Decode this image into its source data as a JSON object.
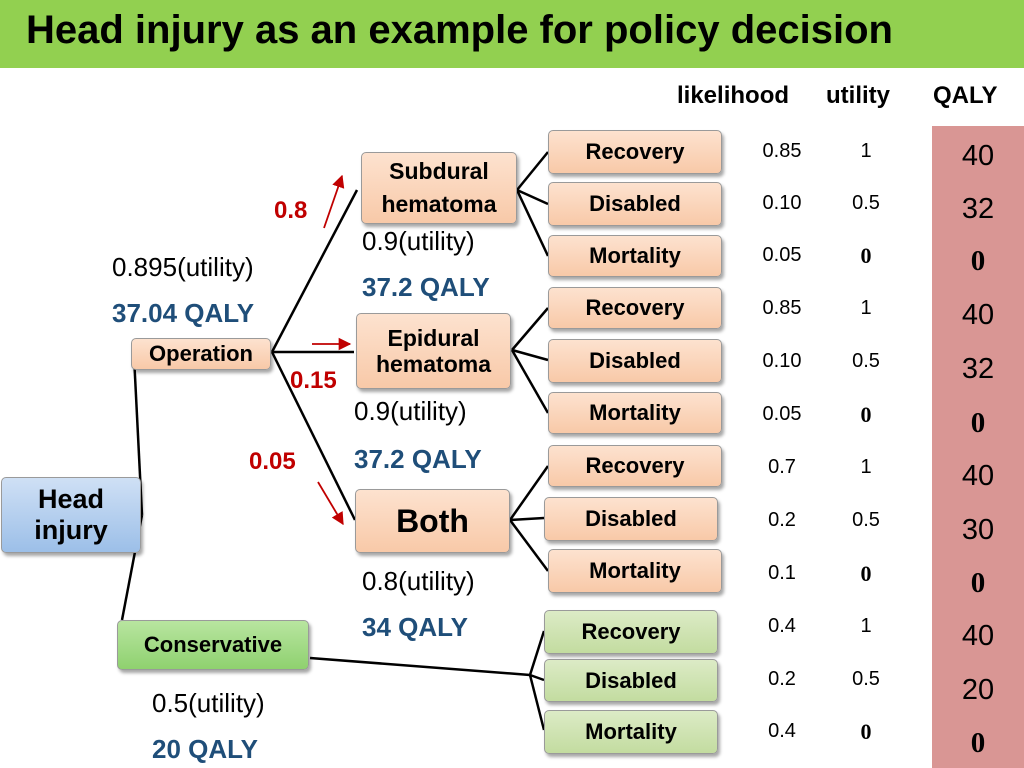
{
  "title": "Head injury as an example for policy decision",
  "headers": {
    "likelihood": "likelihood",
    "utility": "utility",
    "qaly": "QALY"
  },
  "nodes": {
    "head_injury": "Head injury",
    "operation": "Operation",
    "conservative": "Conservative",
    "subdural": "Subdural hematoma",
    "epidural": "Epidural hematoma",
    "both": "Both"
  },
  "probabilities": {
    "subdural": "0.8",
    "epidural": "0.15",
    "both": "0.05"
  },
  "values": {
    "operation": {
      "utility": "0.895(utility)",
      "qaly": "37.04 QALY"
    },
    "subdural": {
      "utility": "0.9(utility)",
      "qaly": "37.2 QALY"
    },
    "epidural": {
      "utility": "0.9(utility)",
      "qaly": "37.2 QALY"
    },
    "both": {
      "utility": "0.8(utility)",
      "qaly": "34 QALY"
    },
    "conservative": {
      "utility": "0.5(utility)",
      "qaly": "20 QALY"
    }
  },
  "outcomes": [
    {
      "label": "Recovery",
      "likelihood": "0.85",
      "utility": "1",
      "qaly": "40"
    },
    {
      "label": "Disabled",
      "likelihood": "0.10",
      "utility": "0.5",
      "qaly": "32"
    },
    {
      "label": "Mortality",
      "likelihood": "0.05",
      "utility": "0",
      "qaly": "0"
    },
    {
      "label": "Recovery",
      "likelihood": "0.85",
      "utility": "1",
      "qaly": "40"
    },
    {
      "label": "Disabled",
      "likelihood": "0.10",
      "utility": "0.5",
      "qaly": "32"
    },
    {
      "label": "Mortality",
      "likelihood": "0.05",
      "utility": "0",
      "qaly": "0"
    },
    {
      "label": "Recovery",
      "likelihood": "0.7",
      "utility": "1",
      "qaly": "40"
    },
    {
      "label": "Disabled",
      "likelihood": "0.2",
      "utility": "0.5",
      "qaly": "30"
    },
    {
      "label": "Mortality",
      "likelihood": "0.1",
      "utility": "0",
      "qaly": "0"
    },
    {
      "label": "Recovery",
      "likelihood": "0.4",
      "utility": "1",
      "qaly": "40"
    },
    {
      "label": "Disabled",
      "likelihood": "0.2",
      "utility": "0.5",
      "qaly": "20"
    },
    {
      "label": "Mortality",
      "likelihood": "0.4",
      "utility": "0",
      "qaly": "0"
    }
  ],
  "colors": {
    "title_bar": "#92d050",
    "qaly_column": "#d99694",
    "probability": "#c00000",
    "qaly_text": "#1f4e79"
  }
}
